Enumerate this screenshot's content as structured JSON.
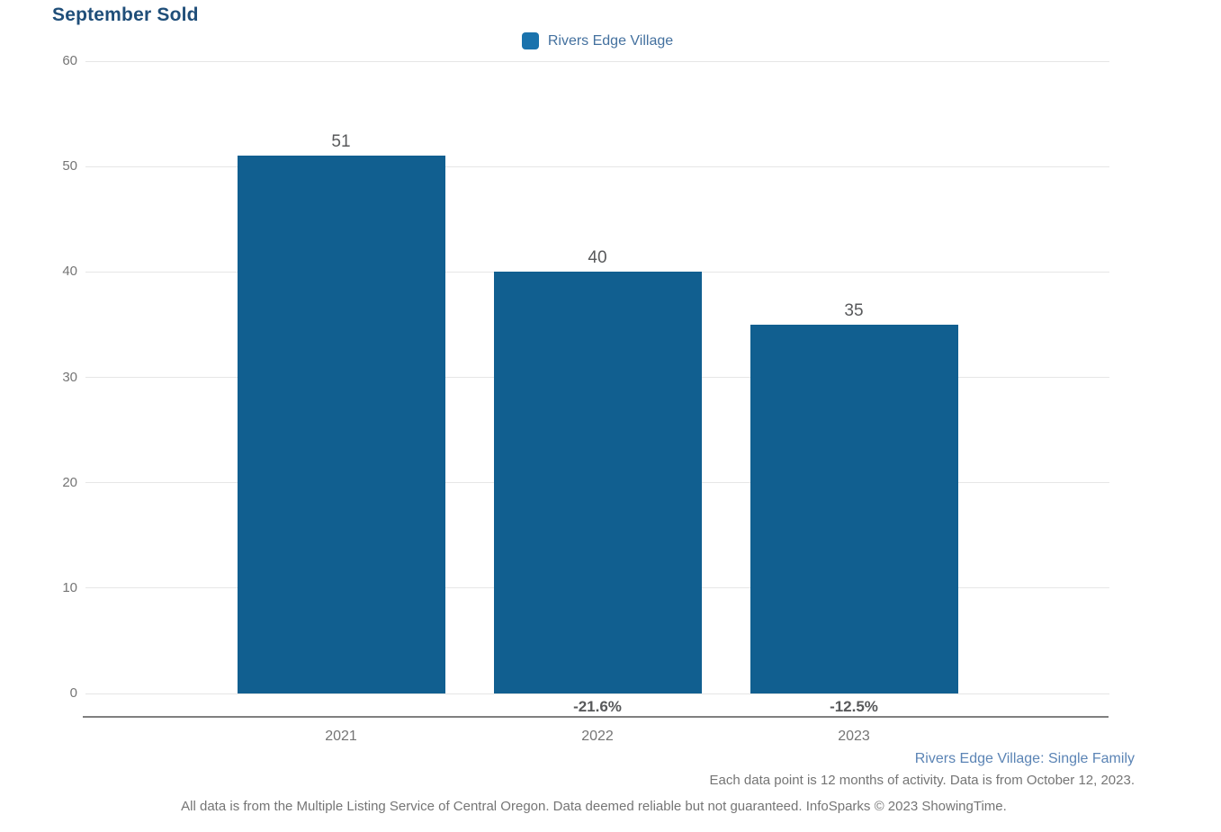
{
  "title": "September Sold",
  "legend": {
    "label": "Rivers Edge Village",
    "swatch_color": "#1a73ad"
  },
  "chart_data": {
    "type": "bar",
    "title": "September Sold",
    "categories": [
      "2021",
      "2022",
      "2023"
    ],
    "series": [
      {
        "name": "Rivers Edge Village",
        "values": [
          51,
          40,
          35
        ]
      }
    ],
    "bar_value_labels": [
      "51",
      "40",
      "35"
    ],
    "pct_change_labels": [
      "",
      "-21.6%",
      "-12.5%"
    ],
    "y_ticks": [
      0,
      10,
      20,
      30,
      40,
      50,
      60
    ],
    "ylim": [
      0,
      60
    ],
    "xlabel": "",
    "ylabel": "",
    "grid": true,
    "legend_position": "top-center",
    "bar_color": "#115f90"
  },
  "footer": {
    "series_note": "Rivers Edge Village: Single Family",
    "data_note": "Each data point is 12 months of activity. Data is from October 12, 2023.",
    "disclaimer": "All data is from the Multiple Listing Service of Central Oregon. Data deemed reliable but not guaranteed. InfoSparks © 2023 ShowingTime."
  },
  "colors": {
    "title_text": "#1f4e79",
    "bar": "#115f90",
    "legend_swatch": "#1a73ad",
    "legend_text": "#44719f",
    "series_note_text": "#5b84b5",
    "muted_text": "#757575",
    "value_label_text": "#58595b",
    "gridline": "#e6e6e6",
    "axis_line": "#808080"
  }
}
